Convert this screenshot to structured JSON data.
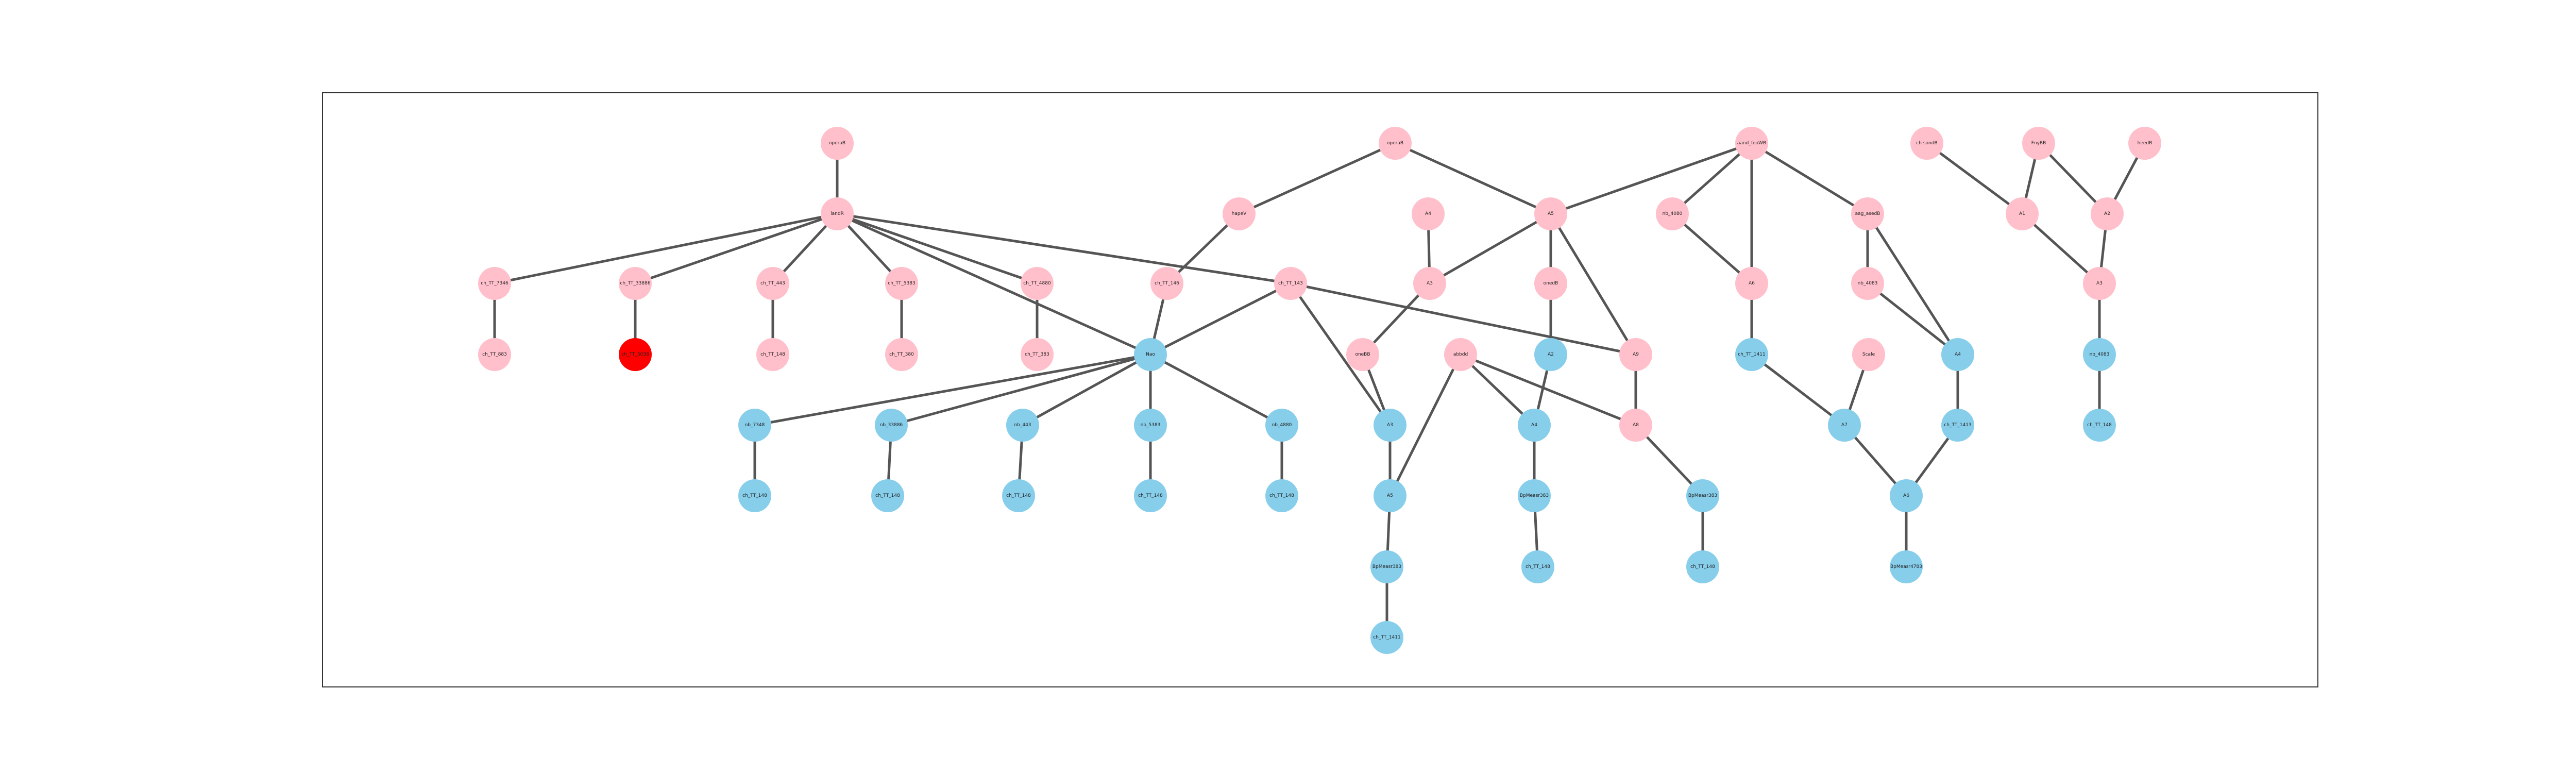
{
  "diagram": {
    "colors": {
      "pink": "#ffc0cb",
      "blue": "#87ceeb",
      "red": "#ff0000",
      "edge": "#555555"
    },
    "nodes": [
      {
        "id": "n1",
        "label": "operaB",
        "color": "pink"
      },
      {
        "id": "n2",
        "label": "landR",
        "color": "pink"
      },
      {
        "id": "n3",
        "label": "ch_TT_7346",
        "color": "pink"
      },
      {
        "id": "n4",
        "label": "ch_TT_33886",
        "color": "pink"
      },
      {
        "id": "n5",
        "label": "ch_TT_443",
        "color": "pink"
      },
      {
        "id": "n6",
        "label": "ch_TT_5383",
        "color": "pink"
      },
      {
        "id": "n7",
        "label": "ch_TT_4880",
        "color": "pink"
      },
      {
        "id": "n8",
        "label": "ch_TT_883",
        "color": "pink"
      },
      {
        "id": "n9",
        "label": "ch_TT_3038",
        "color": "red"
      },
      {
        "id": "n10",
        "label": "ch_TT_148",
        "color": "pink"
      },
      {
        "id": "n11",
        "label": "ch_TT_380",
        "color": "pink"
      },
      {
        "id": "n12",
        "label": "ch_TT_383",
        "color": "pink"
      },
      {
        "id": "n13",
        "label": "operaB",
        "color": "pink"
      },
      {
        "id": "n14",
        "label": "hapeV",
        "color": "pink"
      },
      {
        "id": "n15",
        "label": "ch_TT_146",
        "color": "pink"
      },
      {
        "id": "n16",
        "label": "ch_TT_143",
        "color": "pink"
      },
      {
        "id": "n17",
        "label": "A4",
        "color": "pink"
      },
      {
        "id": "n18",
        "label": "A5",
        "color": "pink"
      },
      {
        "id": "n19",
        "label": "A3",
        "color": "pink"
      },
      {
        "id": "n20",
        "label": "onedB",
        "color": "pink"
      },
      {
        "id": "n21",
        "label": "aand_fooWB",
        "color": "pink"
      },
      {
        "id": "n22",
        "label": "nb_4080",
        "color": "pink"
      },
      {
        "id": "n23",
        "label": "A6",
        "color": "pink"
      },
      {
        "id": "n24",
        "label": "aag_asedB",
        "color": "pink"
      },
      {
        "id": "n25",
        "label": "nb_4083",
        "color": "pink"
      },
      {
        "id": "n26",
        "label": "ch sondB",
        "color": "pink"
      },
      {
        "id": "n27",
        "label": "FnyBB",
        "color": "pink"
      },
      {
        "id": "n28",
        "label": "heedB",
        "color": "pink"
      },
      {
        "id": "n29",
        "label": "A1",
        "color": "pink"
      },
      {
        "id": "n30",
        "label": "A2",
        "color": "pink"
      },
      {
        "id": "n31",
        "label": "A3",
        "color": "pink"
      },
      {
        "id": "n32",
        "label": "oneBB",
        "color": "pink"
      },
      {
        "id": "n33",
        "label": "abbdd",
        "color": "pink"
      },
      {
        "id": "n34",
        "label": "A8",
        "color": "pink"
      },
      {
        "id": "n35",
        "label": "A9",
        "color": "pink"
      },
      {
        "id": "n36",
        "label": "Scale",
        "color": "pink"
      },
      {
        "id": "n37",
        "label": "Nao",
        "color": "blue"
      },
      {
        "id": "n38",
        "label": "A2",
        "color": "blue"
      },
      {
        "id": "n39",
        "label": "ch_TT_1411",
        "color": "blue"
      },
      {
        "id": "n40",
        "label": "A4",
        "color": "blue"
      },
      {
        "id": "n41",
        "label": "nb_4083",
        "color": "blue"
      },
      {
        "id": "n42",
        "label": "nb_7348",
        "color": "blue"
      },
      {
        "id": "n43",
        "label": "nb_33886",
        "color": "blue"
      },
      {
        "id": "n44",
        "label": "nb_443",
        "color": "blue"
      },
      {
        "id": "n45",
        "label": "nb_5383",
        "color": "blue"
      },
      {
        "id": "n46",
        "label": "nb_4880",
        "color": "blue"
      },
      {
        "id": "n47",
        "label": "A3",
        "color": "blue"
      },
      {
        "id": "n48",
        "label": "A4",
        "color": "blue"
      },
      {
        "id": "n49",
        "label": "A7",
        "color": "blue"
      },
      {
        "id": "n50",
        "label": "ch_TT_1413",
        "color": "blue"
      },
      {
        "id": "n51",
        "label": "ch_TT_148",
        "color": "blue"
      },
      {
        "id": "n52",
        "label": "ch_TT_148",
        "color": "blue"
      },
      {
        "id": "n53",
        "label": "ch_TT_148",
        "color": "blue"
      },
      {
        "id": "n54",
        "label": "ch_TT_148",
        "color": "blue"
      },
      {
        "id": "n55",
        "label": "ch_TT_148",
        "color": "blue"
      },
      {
        "id": "n56",
        "label": "A5",
        "color": "blue"
      },
      {
        "id": "n57",
        "label": "BpMeasr383",
        "color": "blue"
      },
      {
        "id": "n58",
        "label": "BpMeasr383",
        "color": "blue"
      },
      {
        "id": "n59",
        "label": "A6",
        "color": "blue"
      },
      {
        "id": "n60",
        "label": "ch_TT_148",
        "color": "blue"
      },
      {
        "id": "n61",
        "label": "BpMeasr383",
        "color": "blue"
      },
      {
        "id": "n62",
        "label": "ch_TT_148",
        "color": "blue"
      },
      {
        "id": "n63",
        "label": "ch_TT_148",
        "color": "blue"
      },
      {
        "id": "n64",
        "label": "BpMeasr4783",
        "color": "blue"
      },
      {
        "id": "n65",
        "label": "ch_TT_1411",
        "color": "blue"
      }
    ],
    "edges": [
      [
        "n1",
        "n2"
      ],
      [
        "n2",
        "n3"
      ],
      [
        "n2",
        "n4"
      ],
      [
        "n2",
        "n5"
      ],
      [
        "n2",
        "n6"
      ],
      [
        "n2",
        "n7"
      ],
      [
        "n2",
        "n16"
      ],
      [
        "n2",
        "n37"
      ],
      [
        "n3",
        "n8"
      ],
      [
        "n4",
        "n9"
      ],
      [
        "n5",
        "n10"
      ],
      [
        "n6",
        "n11"
      ],
      [
        "n7",
        "n12"
      ],
      [
        "n13",
        "n14"
      ],
      [
        "n13",
        "n18"
      ],
      [
        "n14",
        "n15"
      ],
      [
        "n15",
        "n37"
      ],
      [
        "n16",
        "n37"
      ],
      [
        "n16",
        "n47"
      ],
      [
        "n16",
        "n35"
      ],
      [
        "n17",
        "n19"
      ],
      [
        "n18",
        "n19"
      ],
      [
        "n18",
        "n20"
      ],
      [
        "n18",
        "n35"
      ],
      [
        "n19",
        "n32"
      ],
      [
        "n20",
        "n38"
      ],
      [
        "n21",
        "n18"
      ],
      [
        "n21",
        "n22"
      ],
      [
        "n21",
        "n23"
      ],
      [
        "n21",
        "n24"
      ],
      [
        "n22",
        "n23"
      ],
      [
        "n23",
        "n39"
      ],
      [
        "n24",
        "n25"
      ],
      [
        "n24",
        "n40"
      ],
      [
        "n25",
        "n40"
      ],
      [
        "n27",
        "n29"
      ],
      [
        "n27",
        "n30"
      ],
      [
        "n26",
        "n29"
      ],
      [
        "n28",
        "n30"
      ],
      [
        "n29",
        "n31"
      ],
      [
        "n30",
        "n31"
      ],
      [
        "n31",
        "n41"
      ],
      [
        "n32",
        "n47"
      ],
      [
        "n33",
        "n48"
      ],
      [
        "n33",
        "n56"
      ],
      [
        "n33",
        "n34"
      ],
      [
        "n38",
        "n48"
      ],
      [
        "n35",
        "n34"
      ],
      [
        "n36",
        "n49"
      ],
      [
        "n39",
        "n49"
      ],
      [
        "n40",
        "n50"
      ],
      [
        "n37",
        "n42"
      ],
      [
        "n37",
        "n43"
      ],
      [
        "n37",
        "n44"
      ],
      [
        "n37",
        "n45"
      ],
      [
        "n37",
        "n46"
      ],
      [
        "n42",
        "n51"
      ],
      [
        "n43",
        "n52"
      ],
      [
        "n44",
        "n53"
      ],
      [
        "n45",
        "n54"
      ],
      [
        "n46",
        "n55"
      ],
      [
        "n47",
        "n56"
      ],
      [
        "n48",
        "n57"
      ],
      [
        "n34",
        "n58"
      ],
      [
        "n49",
        "n59"
      ],
      [
        "n50",
        "n59"
      ],
      [
        "n41",
        "n60"
      ],
      [
        "n56",
        "n61"
      ],
      [
        "n57",
        "n62"
      ],
      [
        "n58",
        "n63"
      ],
      [
        "n59",
        "n64"
      ],
      [
        "n61",
        "n65"
      ]
    ]
  }
}
